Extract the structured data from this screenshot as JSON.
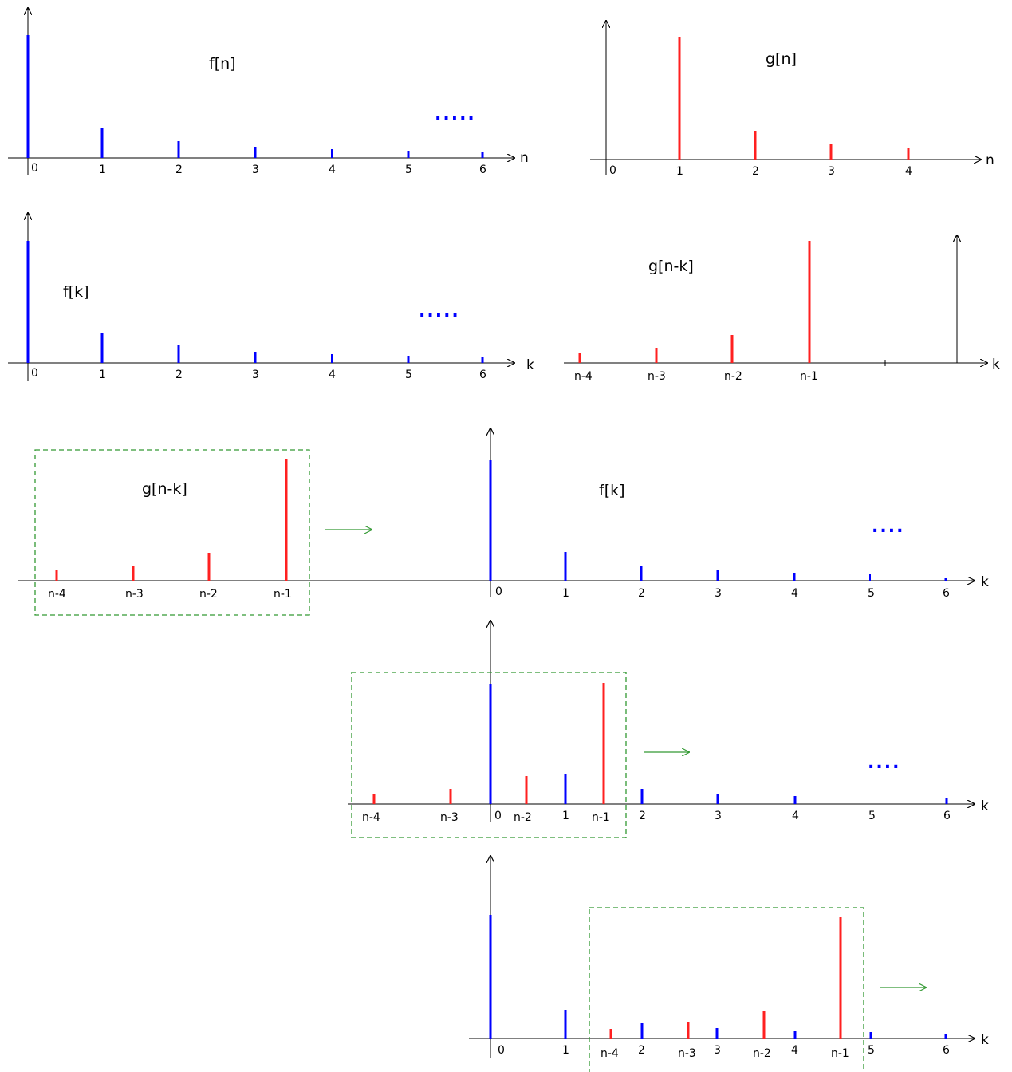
{
  "colors": {
    "f": "#0000ff",
    "g": "#ff2020",
    "window": "#339933",
    "axis": "#000000"
  },
  "panels": {
    "fn": {
      "title": "f[n]",
      "axis_name": "n",
      "ticks": [
        "0",
        "1",
        "2",
        "3",
        "4",
        "5",
        "6"
      ],
      "ellipsis": "....."
    },
    "gn": {
      "title": "g[n]",
      "axis_name": "n",
      "ticks": [
        "0",
        "1",
        "2",
        "3",
        "4"
      ]
    },
    "fk": {
      "title": "f[k]",
      "axis_name": "k",
      "ticks": [
        "0",
        "1",
        "2",
        "3",
        "4",
        "5",
        "6"
      ],
      "ellipsis": "....."
    },
    "gnk": {
      "title": "g[n-k]",
      "axis_name": "k",
      "ticks": [
        "n-4",
        "n-3",
        "n-2",
        "n-1"
      ]
    },
    "step1": {
      "g_title": "g[n-k]",
      "f_title": "f[k]",
      "axis_name": "k",
      "f_ticks": [
        "0",
        "1",
        "2",
        "3",
        "4",
        "5",
        "6"
      ],
      "g_ticks": [
        "n-4",
        "n-3",
        "n-2",
        "n-1"
      ],
      "ellipsis": "...."
    },
    "step2": {
      "axis_name": "k",
      "ticks": [
        "n-4",
        "n-3",
        "0",
        "n-2",
        "1",
        "n-1",
        "2",
        "3",
        "4",
        "5",
        "6"
      ],
      "ellipsis": "...."
    },
    "step3": {
      "axis_name": "k",
      "ticks": [
        "0",
        "1",
        "n-4",
        "2",
        "n-3",
        "3",
        "n-2",
        "4",
        "n-1",
        "5",
        "6"
      ]
    }
  }
}
